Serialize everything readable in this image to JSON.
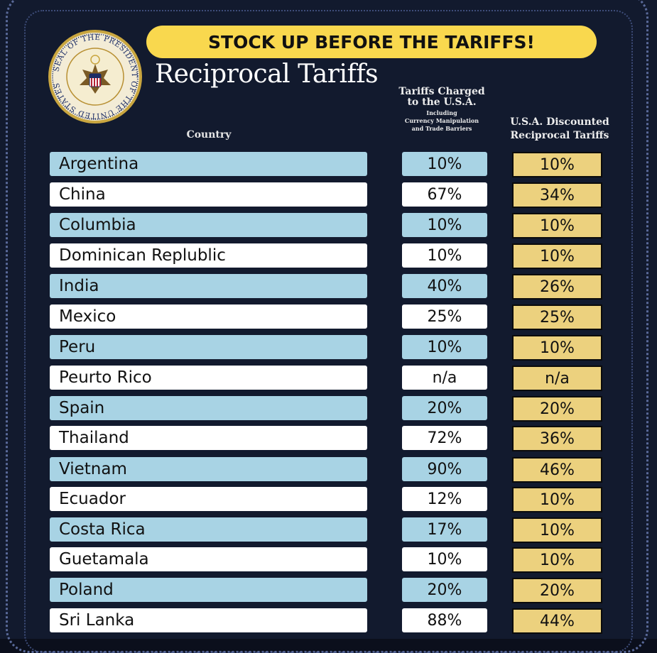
{
  "banner": "STOCK UP BEFORE THE TARIFFS!",
  "title": "Reciprocal Tariffs",
  "seal": {
    "text": "SEAL OF THE PRESIDENT OF THE UNITED STATES"
  },
  "headers": {
    "country": "Country",
    "charged_line1": "Tariffs Charged",
    "charged_line2": "to the U.S.A.",
    "charged_sub1": "Including",
    "charged_sub2": "Currency Manipulation",
    "charged_sub3": "and Trade Barriers",
    "discount_line1": "U.S.A. Discounted",
    "discount_line2": "Reciprocal Tariffs"
  },
  "rows": [
    {
      "country": "Argentina",
      "charged": "10%",
      "discounted": "10%"
    },
    {
      "country": "China",
      "charged": "67%",
      "discounted": "34%"
    },
    {
      "country": "Columbia",
      "charged": "10%",
      "discounted": "10%"
    },
    {
      "country": "Dominican Replublic",
      "charged": "10%",
      "discounted": "10%"
    },
    {
      "country": "India",
      "charged": "40%",
      "discounted": "26%"
    },
    {
      "country": "Mexico",
      "charged": "25%",
      "discounted": "25%"
    },
    {
      "country": "Peru",
      "charged": "10%",
      "discounted": "10%"
    },
    {
      "country": "Peurto Rico",
      "charged": "n/a",
      "discounted": "n/a"
    },
    {
      "country": "Spain",
      "charged": "20%",
      "discounted": "20%"
    },
    {
      "country": "Thailand",
      "charged": "72%",
      "discounted": "36%"
    },
    {
      "country": "Vietnam",
      "charged": "90%",
      "discounted": "46%"
    },
    {
      "country": "Ecuador",
      "charged": "12%",
      "discounted": "10%"
    },
    {
      "country": "Costa Rica",
      "charged": "17%",
      "discounted": "10%"
    },
    {
      "country": "Guetamala",
      "charged": "10%",
      "discounted": "10%"
    },
    {
      "country": "Poland",
      "charged": "20%",
      "discounted": "20%"
    },
    {
      "country": "Sri Lanka",
      "charged": "88%",
      "discounted": "44%"
    }
  ],
  "colors": {
    "background": "#121a2e",
    "banner": "#f9d84e",
    "row_blue": "#a8d3e4",
    "row_white": "#ffffff",
    "discount_fill": "#ecd17e"
  }
}
